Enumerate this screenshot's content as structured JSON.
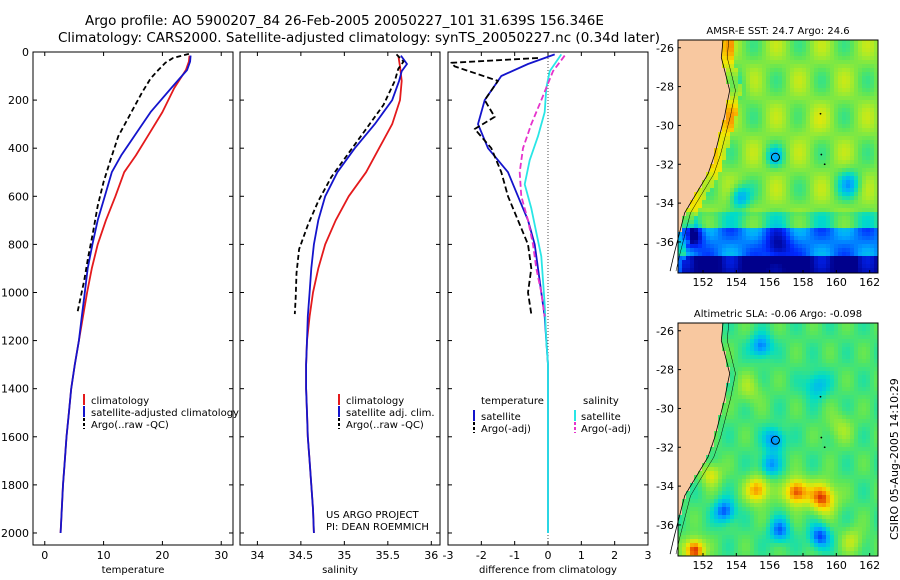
{
  "title": {
    "line1": "Argo profile: AO 5900207_84 26-Feb-2005 20050227_101 31.639S 156.346E",
    "line2": "Climatology: CARS2000. Satellite-adjusted climatology: synTS_20050227.nc (0.34d later)"
  },
  "colors": {
    "clim": "#e41a1c",
    "sat": "#1414cc",
    "argo": "#000000",
    "sal_sat": "#29e6e6",
    "sal_argo": "#e633cc",
    "land": "#f8c8a0",
    "frame": "#000000"
  },
  "chart_data": [
    {
      "type": "line",
      "name": "temperature",
      "xlabel": "temperature",
      "ylabel": "",
      "xlim": [
        -2,
        32
      ],
      "ylim": [
        0,
        2050
      ],
      "y_reversed": true,
      "xticks": [
        0,
        10,
        20,
        30
      ],
      "yticks": [
        0,
        200,
        400,
        600,
        800,
        1000,
        1200,
        1400,
        1600,
        1800,
        2000
      ],
      "series": [
        {
          "name": "climatology",
          "color": "#e41a1c",
          "dash": "",
          "points": [
            [
              24.6,
              15
            ],
            [
              24.5,
              40
            ],
            [
              24,
              75
            ],
            [
              22,
              150
            ],
            [
              20,
              250
            ],
            [
              17.5,
              350
            ],
            [
              15.5,
              430
            ],
            [
              13.5,
              500
            ],
            [
              12,
              600
            ],
            [
              10.4,
              700
            ],
            [
              9,
              800
            ],
            [
              8,
              900
            ],
            [
              7.2,
              1000
            ],
            [
              6.5,
              1100
            ],
            [
              5.8,
              1200
            ],
            [
              5.1,
              1300
            ],
            [
              4.5,
              1400
            ],
            [
              4.1,
              1500
            ],
            [
              3.7,
              1600
            ],
            [
              3.4,
              1700
            ],
            [
              3.1,
              1800
            ],
            [
              2.9,
              1900
            ],
            [
              2.7,
              2000
            ]
          ]
        },
        {
          "name": "satellite-adjusted climatology",
          "color": "#1414cc",
          "dash": "",
          "points": [
            [
              24.8,
              15
            ],
            [
              24.7,
              40
            ],
            [
              24.2,
              75
            ],
            [
              21.5,
              150
            ],
            [
              18,
              250
            ],
            [
              15.2,
              350
            ],
            [
              13,
              430
            ],
            [
              11.4,
              500
            ],
            [
              10.2,
              600
            ],
            [
              9,
              700
            ],
            [
              8.1,
              800
            ],
            [
              7.3,
              900
            ],
            [
              6.8,
              1000
            ],
            [
              6.3,
              1100
            ],
            [
              5.8,
              1200
            ],
            [
              5.1,
              1300
            ],
            [
              4.5,
              1400
            ],
            [
              4.1,
              1500
            ],
            [
              3.7,
              1600
            ],
            [
              3.4,
              1700
            ],
            [
              3.1,
              1800
            ],
            [
              2.9,
              1900
            ],
            [
              2.7,
              2000
            ]
          ]
        },
        {
          "name": "Argo(..raw -QC)",
          "color": "#000000",
          "dash": "5,3",
          "points": [
            [
              24.5,
              8
            ],
            [
              21.8,
              25
            ],
            [
              20.5,
              45
            ],
            [
              19.3,
              75
            ],
            [
              18,
              110
            ],
            [
              16.5,
              170
            ],
            [
              14.5,
              260
            ],
            [
              12.5,
              350
            ],
            [
              11.3,
              440
            ],
            [
              10,
              540
            ],
            [
              9,
              640
            ],
            [
              8.2,
              750
            ],
            [
              7.4,
              850
            ],
            [
              6.7,
              950
            ],
            [
              5.5,
              1090
            ]
          ]
        }
      ],
      "legend": [
        {
          "label": "climatology",
          "color": "#e41a1c"
        },
        {
          "label": "satellite-adjusted climatology",
          "color": "#1414cc"
        },
        {
          "label": "Argo(..raw -QC)",
          "color": "#000000"
        }
      ]
    },
    {
      "type": "line",
      "name": "salinity",
      "xlabel": "salinity",
      "ylabel": "",
      "xlim": [
        33.8,
        36.1
      ],
      "ylim": [
        0,
        2050
      ],
      "y_reversed": true,
      "xticks": [
        34,
        34.5,
        35,
        35.5,
        36
      ],
      "xticklabels": [
        "34",
        "34.5",
        "35",
        "35.5",
        "36"
      ],
      "series": [
        {
          "name": "climatology",
          "color": "#e41a1c",
          "dash": "",
          "points": [
            [
              35.62,
              15
            ],
            [
              35.64,
              60
            ],
            [
              35.66,
              120
            ],
            [
              35.64,
              200
            ],
            [
              35.55,
              300
            ],
            [
              35.4,
              400
            ],
            [
              35.25,
              500
            ],
            [
              35.05,
              600
            ],
            [
              34.9,
              700
            ],
            [
              34.78,
              800
            ],
            [
              34.7,
              900
            ],
            [
              34.64,
              1000
            ],
            [
              34.6,
              1100
            ],
            [
              34.57,
              1200
            ],
            [
              34.56,
              1300
            ],
            [
              34.56,
              1400
            ],
            [
              34.57,
              1500
            ],
            [
              34.58,
              1600
            ],
            [
              34.6,
              1700
            ],
            [
              34.62,
              1800
            ],
            [
              34.64,
              1900
            ],
            [
              34.65,
              2000
            ]
          ]
        },
        {
          "name": "satellite adj. clim.",
          "color": "#1414cc",
          "dash": "",
          "points": [
            [
              35.65,
              15
            ],
            [
              35.72,
              50
            ],
            [
              35.66,
              80
            ],
            [
              35.63,
              120
            ],
            [
              35.55,
              200
            ],
            [
              35.35,
              300
            ],
            [
              35.12,
              400
            ],
            [
              34.92,
              500
            ],
            [
              34.78,
              600
            ],
            [
              34.7,
              700
            ],
            [
              34.65,
              800
            ],
            [
              34.62,
              900
            ],
            [
              34.6,
              1000
            ],
            [
              34.58,
              1100
            ],
            [
              34.57,
              1200
            ],
            [
              34.56,
              1300
            ],
            [
              34.56,
              1400
            ],
            [
              34.57,
              1500
            ],
            [
              34.58,
              1600
            ],
            [
              34.6,
              1700
            ],
            [
              34.62,
              1800
            ],
            [
              34.64,
              1900
            ],
            [
              34.65,
              2000
            ]
          ]
        },
        {
          "name": "Argo(..raw -QC)",
          "color": "#000000",
          "dash": "5,3",
          "points": [
            [
              35.6,
              10
            ],
            [
              35.68,
              40
            ],
            [
              35.62,
              70
            ],
            [
              35.58,
              120
            ],
            [
              35.45,
              220
            ],
            [
              35.25,
              320
            ],
            [
              35.05,
              420
            ],
            [
              34.85,
              520
            ],
            [
              34.7,
              620
            ],
            [
              34.58,
              720
            ],
            [
              34.48,
              820
            ],
            [
              34.45,
              920
            ],
            [
              34.44,
              1020
            ],
            [
              34.43,
              1090
            ]
          ]
        }
      ],
      "legend": [
        {
          "label": "climatology",
          "color": "#e41a1c"
        },
        {
          "label": "satellite adj. clim.",
          "color": "#1414cc"
        },
        {
          "label": "Argo(..raw -QC)",
          "color": "#000000"
        }
      ],
      "annotation": [
        "US ARGO PROJECT",
        "PI: DEAN ROEMMICH"
      ]
    },
    {
      "type": "line",
      "name": "difference",
      "xlabel": "difference from climatology",
      "ylabel": "",
      "xlim": [
        -3,
        3
      ],
      "ylim": [
        0,
        2050
      ],
      "y_reversed": true,
      "xticks": [
        -3,
        -2,
        -1,
        0,
        1,
        2,
        3
      ],
      "series": [
        {
          "name": "satellite (temperature)",
          "color": "#1414cc",
          "dash": "",
          "points": [
            [
              0.2,
              10
            ],
            [
              -0.6,
              50
            ],
            [
              -1.4,
              100
            ],
            [
              -1.9,
              200
            ],
            [
              -2.1,
              300
            ],
            [
              -1.8,
              400
            ],
            [
              -1.2,
              500
            ],
            [
              -0.9,
              600
            ],
            [
              -0.6,
              700
            ],
            [
              -0.4,
              800
            ],
            [
              -0.3,
              900
            ],
            [
              -0.2,
              1000
            ],
            [
              -0.1,
              1100
            ],
            [
              -0.05,
              1200
            ],
            [
              0,
              1300
            ],
            [
              0,
              1400
            ],
            [
              0,
              1600
            ],
            [
              0,
              1800
            ],
            [
              0,
              2000
            ]
          ]
        },
        {
          "name": "Argo(-adj) (temperature)",
          "color": "#000000",
          "dash": "6,3",
          "points": [
            [
              -0.3,
              25
            ],
            [
              -2.9,
              45
            ],
            [
              -2.8,
              60
            ],
            [
              -1.5,
              120
            ],
            [
              -1.9,
              200
            ],
            [
              -1.6,
              270
            ],
            [
              -2.2,
              320
            ],
            [
              -1.7,
              400
            ],
            [
              -1.4,
              500
            ],
            [
              -1.2,
              600
            ],
            [
              -0.9,
              700
            ],
            [
              -0.6,
              800
            ],
            [
              -0.5,
              900
            ],
            [
              -0.6,
              1000
            ],
            [
              -0.5,
              1090
            ]
          ]
        },
        {
          "name": "satellite (salinity)",
          "color": "#29e6e6",
          "dash": "",
          "points": [
            [
              0.4,
              10
            ],
            [
              0.05,
              80
            ],
            [
              -0.05,
              150
            ],
            [
              -0.1,
              250
            ],
            [
              -0.3,
              350
            ],
            [
              -0.55,
              450
            ],
            [
              -0.7,
              550
            ],
            [
              -0.5,
              650
            ],
            [
              -0.35,
              750
            ],
            [
              -0.2,
              850
            ],
            [
              -0.15,
              950
            ],
            [
              -0.1,
              1050
            ],
            [
              -0.05,
              1200
            ],
            [
              0,
              1300
            ],
            [
              0,
              1600
            ],
            [
              0,
              2000
            ]
          ]
        },
        {
          "name": "Argo(-adj) (salinity)",
          "color": "#e633cc",
          "dash": "6,3",
          "points": [
            [
              0.5,
              15
            ],
            [
              0.15,
              80
            ],
            [
              -0.2,
              200
            ],
            [
              -0.5,
              300
            ],
            [
              -0.75,
              400
            ],
            [
              -0.85,
              500
            ],
            [
              -0.8,
              600
            ],
            [
              -0.6,
              700
            ],
            [
              -0.45,
              800
            ],
            [
              -0.35,
              900
            ],
            [
              -0.2,
              1000
            ],
            [
              -0.1,
              1100
            ]
          ]
        }
      ],
      "legend_left_title": "temperature",
      "legend_right_title": "salinity",
      "legend_left": [
        {
          "label": "satellite",
          "color": "#1414cc"
        },
        {
          "label": "Argo(-adj)",
          "color": "#000000"
        }
      ],
      "legend_right": [
        {
          "label": "satellite",
          "color": "#29e6e6"
        },
        {
          "label": "Argo(-adj)",
          "color": "#e633cc"
        }
      ]
    },
    {
      "type": "heatmap",
      "name": "sst_map",
      "title": "AMSR-E SST: 24.7 Argo: 24.6",
      "xticks": [
        152,
        154,
        156,
        158,
        160,
        162
      ],
      "yticks": [
        -26,
        -28,
        -30,
        -32,
        -34,
        -36
      ],
      "xlim": [
        150.5,
        162.5
      ],
      "ylim": [
        -37.6,
        -25.6
      ],
      "profile_lon": 156.346,
      "profile_lat": -31.639
    },
    {
      "type": "heatmap",
      "name": "sla_map",
      "title": "Altimetric SLA: -0.06 Argo: -0.098",
      "xticks": [
        152,
        154,
        156,
        158,
        160,
        162
      ],
      "yticks": [
        -26,
        -28,
        -30,
        -32,
        -34,
        -36
      ],
      "xlim": [
        150.5,
        162.5
      ],
      "ylim": [
        -37.6,
        -25.6
      ],
      "profile_lon": 156.346,
      "profile_lat": -31.639
    }
  ],
  "credit": "CSIRO 05-Aug-2005 14:10:29"
}
